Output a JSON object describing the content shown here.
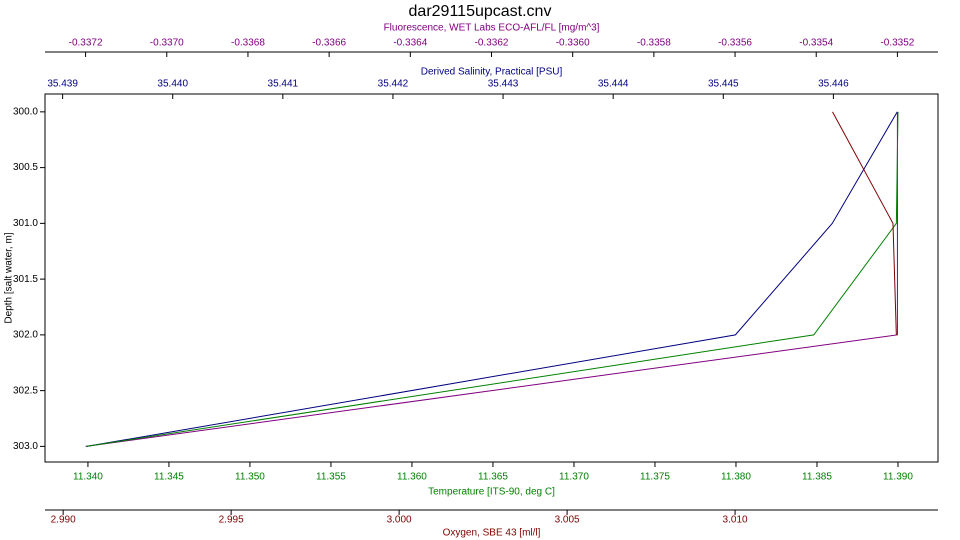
{
  "chart_data": {
    "type": "line",
    "title": "dar29115upcast.cnv",
    "y_label": "Depth [salt water, m]",
    "y": [
      300,
      301,
      302,
      303
    ],
    "ylim": [
      299.84,
      303.14
    ],
    "yticks": [
      {
        "value": 300,
        "label": "300.0"
      },
      300.5,
      {
        "value": 301,
        "label": "301.0"
      },
      301.5,
      {
        "value": 302,
        "label": "302.0"
      },
      302.5,
      {
        "value": 303,
        "label": "303.0"
      }
    ],
    "series": [
      {
        "name": "Fluorescence, WET Labs ECO-AFL/FL [mg/m^3]",
        "color": "#800080",
        "values": [
          -0.3352,
          -0.3352,
          -0.3352,
          -0.3372
        ],
        "xlim": [
          -0.3373,
          -0.3351
        ],
        "xticks": [
          -0.3372,
          {
            "value": -0.337,
            "label": "-0.3370"
          },
          -0.3368,
          -0.3366,
          -0.3364,
          -0.3362,
          {
            "value": -0.336,
            "label": "-0.3360"
          },
          -0.3358,
          -0.3356,
          -0.3354,
          -0.3352
        ]
      },
      {
        "name": "Derived Salinity, Practical [PSU]",
        "color": "#000080",
        "values": [
          35.44658,
          35.44599,
          35.44511,
          35.43922
        ],
        "xlim": [
          35.43884,
          35.44695
        ],
        "xticks": [
          35.439,
          {
            "value": 35.44,
            "label": "35.440"
          },
          35.441,
          35.442,
          35.443,
          35.444,
          35.445,
          35.446
        ]
      },
      {
        "name": "Temperature [ITS-90, deg C]",
        "color": "#008000",
        "values": [
          11.39,
          11.3899,
          11.3848,
          11.3399
        ],
        "xlim": [
          11.33735,
          11.39247
        ],
        "xticks": [
          {
            "value": 11.34,
            "label": "11.340"
          },
          11.345,
          {
            "value": 11.35,
            "label": "11.350"
          },
          11.355,
          {
            "value": 11.36,
            "label": "11.360"
          },
          11.365,
          {
            "value": 11.37,
            "label": "11.370"
          },
          11.375,
          {
            "value": 11.38,
            "label": "11.380"
          },
          11.385,
          {
            "value": 11.39,
            "label": "11.390"
          }
        ]
      },
      {
        "name": "Oxygen, SBE 43 [ml/l]",
        "color": "#800000",
        "values": [
          3.0129,
          3.0147,
          3.0148,
          null
        ],
        "xlim": [
          2.98946,
          3.01604
        ],
        "xticks": [
          {
            "value": 2.99,
            "label": "2.990"
          },
          2.995,
          {
            "value": 3,
            "label": "3.000"
          },
          3.005,
          {
            "value": 3.01,
            "label": "3.010"
          }
        ]
      }
    ]
  }
}
